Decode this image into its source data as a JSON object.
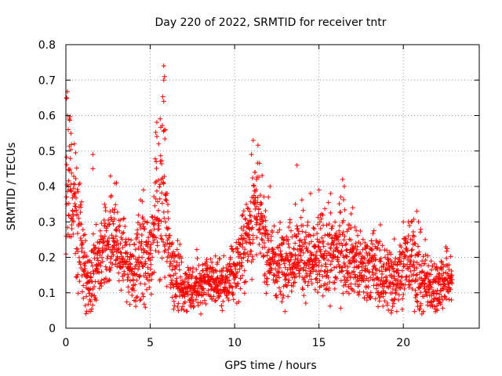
{
  "chart_data": {
    "type": "scatter",
    "title": "Day 220 of 2022, SRMTID for receiver tntr",
    "xlabel": "GPS time / hours",
    "ylabel": "SRMTID / TECUs",
    "xlim": [
      0,
      24.5
    ],
    "ylim": [
      0,
      0.8
    ],
    "xticks": [
      "0",
      "5",
      "10",
      "15",
      "20"
    ],
    "xtick_values": [
      0,
      5,
      10,
      15,
      20
    ],
    "yticks": [
      "0",
      "0.1",
      "0.2",
      "0.3",
      "0.4",
      "0.5",
      "0.6",
      "0.7",
      "0.8"
    ],
    "ytick_values": [
      0,
      0.1,
      0.2,
      0.3,
      0.4,
      0.5,
      0.6,
      0.7,
      0.8
    ],
    "grid": true,
    "marker": "+",
    "series": [
      {
        "name": "SRMTID",
        "color": "#ff0000",
        "x_range": [
          0,
          22.9
        ],
        "envelope": [
          [
            0.0,
            0.38,
            0.12
          ],
          [
            0.15,
            0.45,
            0.13
          ],
          [
            0.4,
            0.38,
            0.1
          ],
          [
            0.7,
            0.32,
            0.09
          ],
          [
            1.0,
            0.2,
            0.07
          ],
          [
            1.3,
            0.14,
            0.05
          ],
          [
            1.6,
            0.15,
            0.05
          ],
          [
            2.0,
            0.22,
            0.06
          ],
          [
            2.5,
            0.24,
            0.06
          ],
          [
            3.0,
            0.26,
            0.06
          ],
          [
            3.5,
            0.2,
            0.05
          ],
          [
            4.0,
            0.15,
            0.04
          ],
          [
            4.5,
            0.22,
            0.07
          ],
          [
            5.0,
            0.22,
            0.06
          ],
          [
            5.4,
            0.35,
            0.09
          ],
          [
            5.8,
            0.4,
            0.12
          ],
          [
            6.2,
            0.18,
            0.05
          ],
          [
            6.5,
            0.16,
            0.05
          ],
          [
            7.0,
            0.12,
            0.04
          ],
          [
            7.5,
            0.12,
            0.04
          ],
          [
            8.0,
            0.12,
            0.03
          ],
          [
            8.5,
            0.13,
            0.03
          ],
          [
            9.0,
            0.13,
            0.03
          ],
          [
            9.5,
            0.12,
            0.03
          ],
          [
            10.0,
            0.16,
            0.04
          ],
          [
            10.5,
            0.22,
            0.05
          ],
          [
            11.0,
            0.3,
            0.07
          ],
          [
            11.2,
            0.36,
            0.08
          ],
          [
            11.6,
            0.28,
            0.06
          ],
          [
            12.0,
            0.2,
            0.05
          ],
          [
            12.5,
            0.18,
            0.05
          ],
          [
            13.0,
            0.2,
            0.05
          ],
          [
            13.5,
            0.2,
            0.05
          ],
          [
            14.0,
            0.22,
            0.06
          ],
          [
            14.5,
            0.18,
            0.05
          ],
          [
            15.0,
            0.2,
            0.06
          ],
          [
            15.5,
            0.2,
            0.06
          ],
          [
            16.0,
            0.22,
            0.06
          ],
          [
            16.5,
            0.22,
            0.06
          ],
          [
            17.0,
            0.2,
            0.05
          ],
          [
            17.5,
            0.16,
            0.05
          ],
          [
            18.0,
            0.18,
            0.05
          ],
          [
            18.5,
            0.16,
            0.05
          ],
          [
            19.0,
            0.14,
            0.05
          ],
          [
            19.5,
            0.15,
            0.05
          ],
          [
            20.0,
            0.18,
            0.05
          ],
          [
            20.5,
            0.2,
            0.06
          ],
          [
            21.0,
            0.14,
            0.05
          ],
          [
            21.5,
            0.12,
            0.04
          ],
          [
            22.0,
            0.12,
            0.04
          ],
          [
            22.5,
            0.14,
            0.04
          ],
          [
            22.9,
            0.14,
            0.04
          ]
        ],
        "outliers": [
          [
            0.05,
            0.65
          ],
          [
            0.1,
            0.6
          ],
          [
            0.2,
            0.59
          ],
          [
            0.3,
            0.55
          ],
          [
            0.5,
            0.52
          ],
          [
            5.5,
            0.52
          ],
          [
            5.35,
            0.47
          ],
          [
            5.8,
            0.74
          ],
          [
            5.85,
            0.71
          ],
          [
            5.8,
            0.7
          ],
          [
            5.8,
            0.64
          ],
          [
            5.9,
            0.56
          ],
          [
            6.0,
            0.38
          ],
          [
            1.6,
            0.49
          ],
          [
            1.6,
            0.45
          ],
          [
            3.0,
            0.41
          ],
          [
            4.6,
            0.39
          ],
          [
            11.1,
            0.53
          ],
          [
            11.0,
            0.49
          ],
          [
            11.2,
            0.44
          ],
          [
            11.3,
            0.42
          ],
          [
            13.7,
            0.46
          ],
          [
            13.6,
            0.35
          ],
          [
            14.5,
            0.38
          ],
          [
            15.0,
            0.39
          ],
          [
            15.7,
            0.38
          ],
          [
            16.4,
            0.42
          ],
          [
            16.5,
            0.4
          ],
          [
            16.3,
            0.37
          ],
          [
            17.0,
            0.34
          ],
          [
            20.0,
            0.3
          ],
          [
            20.8,
            0.33
          ],
          [
            20.9,
            0.3
          ],
          [
            21.3,
            0.25
          ],
          [
            12.1,
            0.4
          ],
          [
            12.0,
            0.37
          ],
          [
            8.0,
            0.04
          ],
          [
            19.3,
            0.05
          ],
          [
            21.1,
            0.04
          ],
          [
            22.0,
            0.05
          ]
        ]
      }
    ]
  }
}
